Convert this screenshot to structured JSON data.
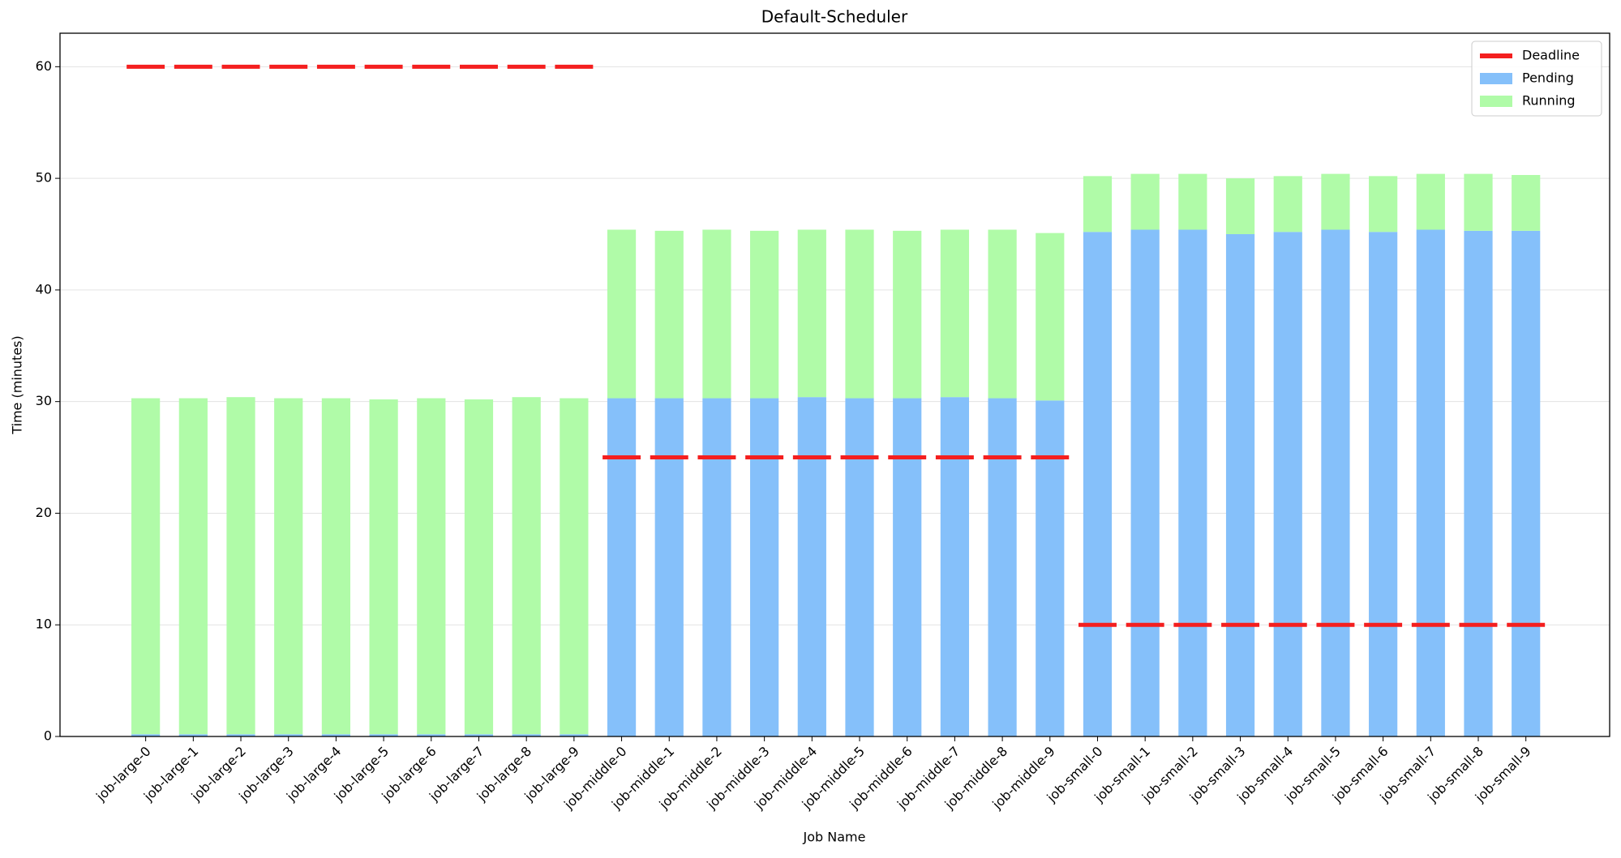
{
  "chart_data": {
    "type": "bar",
    "title": "Default-Scheduler",
    "x_label": "Job Name",
    "y_label": "Time (minutes)",
    "categories": [
      "job-large-0",
      "job-large-1",
      "job-large-2",
      "job-large-3",
      "job-large-4",
      "job-large-5",
      "job-large-6",
      "job-large-7",
      "job-large-8",
      "job-large-9",
      "job-middle-0",
      "job-middle-1",
      "job-middle-2",
      "job-middle-3",
      "job-middle-4",
      "job-middle-5",
      "job-middle-6",
      "job-middle-7",
      "job-middle-8",
      "job-middle-9",
      "job-small-0",
      "job-small-1",
      "job-small-2",
      "job-small-3",
      "job-small-4",
      "job-small-5",
      "job-small-6",
      "job-small-7",
      "job-small-8",
      "job-small-9"
    ],
    "stacked": true,
    "series": [
      {
        "name": "Pending",
        "color": "#85c0fa",
        "values": [
          0.2,
          0.2,
          0.2,
          0.2,
          0.2,
          0.2,
          0.2,
          0.2,
          0.2,
          0.2,
          30.3,
          30.3,
          30.3,
          30.3,
          30.4,
          30.3,
          30.3,
          30.4,
          30.3,
          30.1,
          45.2,
          45.4,
          45.4,
          45.0,
          45.2,
          45.4,
          45.2,
          45.4,
          45.3,
          45.3
        ]
      },
      {
        "name": "Running",
        "color": "#b0fba8",
        "values": [
          30.1,
          30.1,
          30.2,
          30.1,
          30.1,
          30.0,
          30.1,
          30.0,
          30.2,
          30.1,
          15.1,
          15.0,
          15.1,
          15.0,
          15.0,
          15.1,
          15.0,
          15.0,
          15.1,
          15.0,
          5.0,
          5.0,
          5.0,
          5.0,
          5.0,
          5.0,
          5.0,
          5.0,
          5.1,
          5.0
        ]
      }
    ],
    "deadline": {
      "name": "Deadline",
      "color": "#f41f1f",
      "values": [
        60,
        60,
        60,
        60,
        60,
        60,
        60,
        60,
        60,
        60,
        25,
        25,
        25,
        25,
        25,
        25,
        25,
        25,
        25,
        25,
        10,
        10,
        10,
        10,
        10,
        10,
        10,
        10,
        10,
        10
      ]
    },
    "ylim": [
      0,
      63
    ],
    "yticks": [
      0,
      10,
      20,
      30,
      40,
      50,
      60
    ],
    "grid": true,
    "legend": "upper right"
  }
}
